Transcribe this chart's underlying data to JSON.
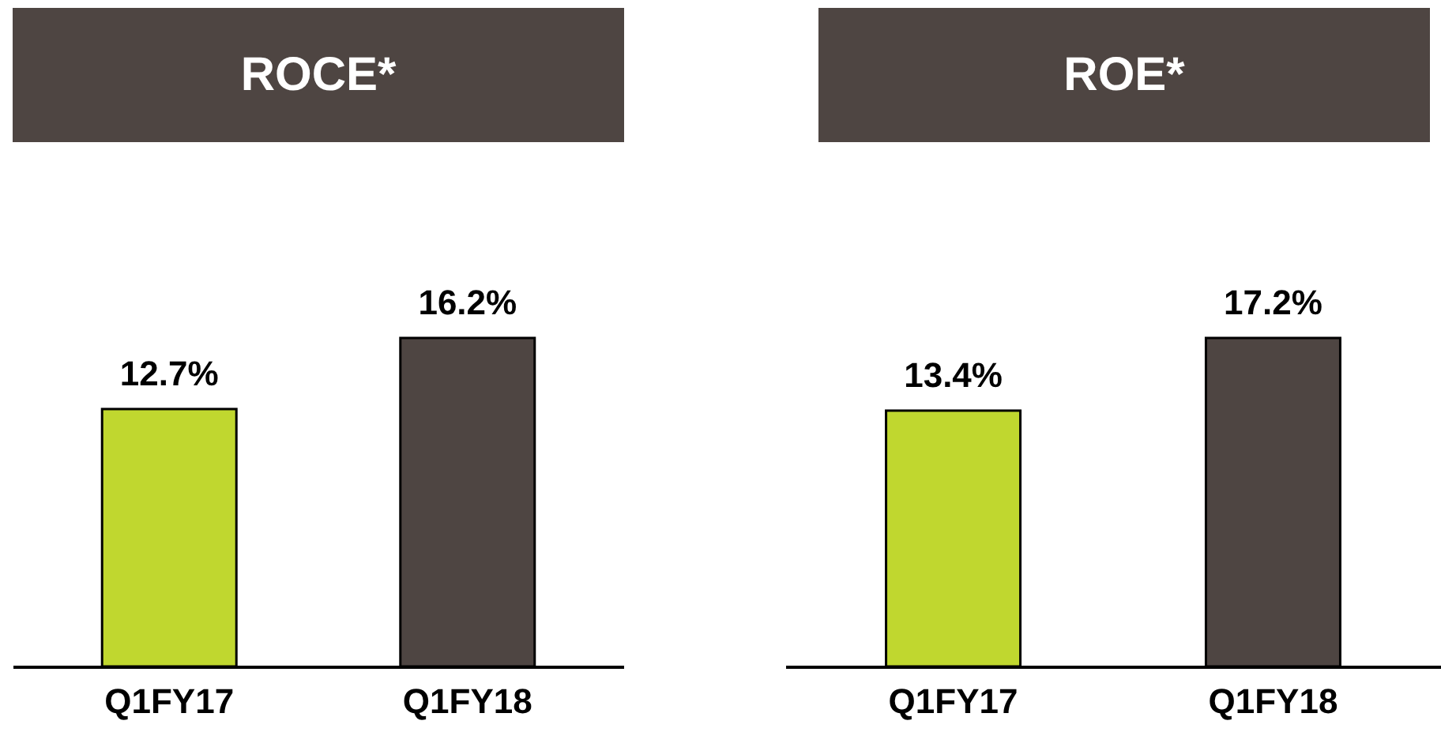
{
  "chart_data": [
    {
      "type": "bar",
      "title": "ROCE*",
      "categories": [
        "Q1FY17",
        "Q1FY18"
      ],
      "values": [
        12.7,
        16.2
      ],
      "colors": [
        "#c0d72f",
        "#4e4542"
      ],
      "value_labels": [
        "12.7%",
        "16.2%"
      ]
    },
    {
      "type": "bar",
      "title": "ROE*",
      "categories": [
        "Q1FY17",
        "Q1FY18"
      ],
      "values": [
        13.4,
        17.2
      ],
      "colors": [
        "#c0d72f",
        "#4e4542"
      ],
      "value_labels": [
        "13.4%",
        "17.2%"
      ]
    }
  ]
}
